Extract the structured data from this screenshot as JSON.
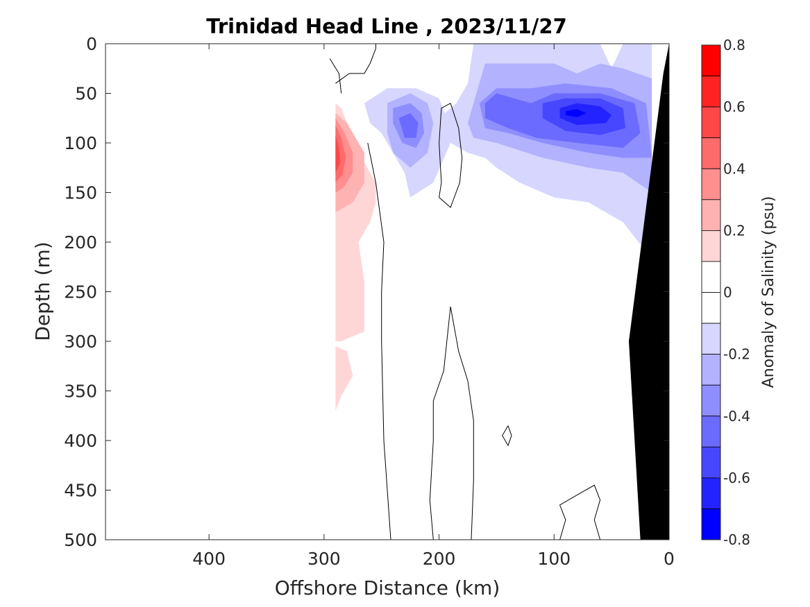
{
  "chart_data": {
    "type": "heatmap",
    "subtype": "filled-contour",
    "title": "Trinidad Head Line , 2023/11/27",
    "xlabel": "Offshore Distance (km)",
    "ylabel": "Depth (m)",
    "colorbar_label": "Anomaly of Salinity (psu)",
    "xlim": [
      490,
      0
    ],
    "ylim": [
      0,
      500
    ],
    "x_reversed": true,
    "y_reversed": true,
    "xticks": [
      400,
      300,
      200,
      100,
      0
    ],
    "yticks": [
      0,
      50,
      100,
      150,
      200,
      250,
      300,
      350,
      400,
      450,
      500
    ],
    "colorbar_ticks": [
      0.8,
      0.6,
      0.4,
      0.2,
      0,
      -0.2,
      -0.4,
      -0.6,
      -0.8
    ],
    "colorbar_range": [
      -0.8,
      0.8
    ],
    "levels": [
      {
        "from": 0.7,
        "to": 0.8,
        "color": "#ff0000"
      },
      {
        "from": 0.6,
        "to": 0.7,
        "color": "#ff2323"
      },
      {
        "from": 0.5,
        "to": 0.6,
        "color": "#ff4747"
      },
      {
        "from": 0.4,
        "to": 0.5,
        "color": "#ff6b6b"
      },
      {
        "from": 0.3,
        "to": 0.4,
        "color": "#ff8e8e"
      },
      {
        "from": 0.2,
        "to": 0.3,
        "color": "#ffb2b2"
      },
      {
        "from": 0.1,
        "to": 0.2,
        "color": "#ffd6d6"
      },
      {
        "from": 0.0,
        "to": 0.1,
        "color": "#ffffff"
      },
      {
        "from": -0.1,
        "to": 0.0,
        "color": "#ffffff"
      },
      {
        "from": -0.2,
        "to": -0.1,
        "color": "#d6d6ff"
      },
      {
        "from": -0.3,
        "to": -0.2,
        "color": "#b2b2ff"
      },
      {
        "from": -0.4,
        "to": -0.3,
        "color": "#8e8eff"
      },
      {
        "from": -0.5,
        "to": -0.4,
        "color": "#6b6bff"
      },
      {
        "from": -0.6,
        "to": -0.5,
        "color": "#4747ff"
      },
      {
        "from": -0.7,
        "to": -0.6,
        "color": "#2323ff"
      },
      {
        "from": -0.8,
        "to": -0.7,
        "color": "#0000ff"
      }
    ],
    "regions": [
      {
        "name": "positive-anomaly-core",
        "level_color": "#ffd6d6",
        "anomaly": 0.15,
        "points": [
          [
            290,
            60
          ],
          [
            285,
            65
          ],
          [
            270,
            110
          ],
          [
            255,
            140
          ],
          [
            255,
            160
          ],
          [
            260,
            180
          ],
          [
            270,
            200
          ],
          [
            265,
            240
          ],
          [
            265,
            290
          ],
          [
            285,
            300
          ],
          [
            290,
            300
          ],
          [
            290,
            60
          ]
        ]
      },
      {
        "name": "positive-anomaly-lower",
        "level_color": "#ffd6d6",
        "anomaly": 0.15,
        "points": [
          [
            290,
            305
          ],
          [
            280,
            310
          ],
          [
            275,
            335
          ],
          [
            285,
            355
          ],
          [
            290,
            370
          ],
          [
            290,
            305
          ]
        ]
      },
      {
        "name": "positive-anomaly-02",
        "level_color": "#ffb2b2",
        "anomaly": 0.25,
        "points": [
          [
            290,
            70
          ],
          [
            280,
            80
          ],
          [
            265,
            110
          ],
          [
            265,
            140
          ],
          [
            275,
            160
          ],
          [
            290,
            170
          ],
          [
            290,
            70
          ]
        ]
      },
      {
        "name": "positive-anomaly-03",
        "level_color": "#ff8e8e",
        "anomaly": 0.35,
        "points": [
          [
            290,
            75
          ],
          [
            282,
            90
          ],
          [
            275,
            110
          ],
          [
            275,
            130
          ],
          [
            283,
            145
          ],
          [
            290,
            150
          ],
          [
            290,
            75
          ]
        ]
      },
      {
        "name": "positive-anomaly-04",
        "level_color": "#ff6b6b",
        "anomaly": 0.45,
        "points": [
          [
            290,
            82
          ],
          [
            285,
            95
          ],
          [
            281,
            115
          ],
          [
            284,
            132
          ],
          [
            290,
            140
          ],
          [
            290,
            82
          ]
        ]
      },
      {
        "name": "positive-anomaly-05",
        "level_color": "#ff4747",
        "anomaly": 0.55,
        "points": [
          [
            290,
            92
          ],
          [
            287,
            105
          ],
          [
            286,
            120
          ],
          [
            290,
            130
          ],
          [
            290,
            92
          ]
        ]
      },
      {
        "name": "negative-anomaly-01",
        "level_color": "#d6d6ff",
        "anomaly": -0.15,
        "points": [
          [
            265,
            60
          ],
          [
            245,
            45
          ],
          [
            220,
            45
          ],
          [
            200,
            55
          ],
          [
            195,
            70
          ],
          [
            185,
            60
          ],
          [
            175,
            40
          ],
          [
            170,
            0
          ],
          [
            60,
            0
          ],
          [
            50,
            25
          ],
          [
            40,
            0
          ],
          [
            15,
            0
          ],
          [
            15,
            200
          ],
          [
            10,
            225
          ],
          [
            20,
            210
          ],
          [
            40,
            180
          ],
          [
            70,
            160
          ],
          [
            100,
            155
          ],
          [
            130,
            140
          ],
          [
            150,
            125
          ],
          [
            160,
            115
          ],
          [
            175,
            110
          ],
          [
            190,
            100
          ],
          [
            205,
            140
          ],
          [
            225,
            155
          ],
          [
            230,
            130
          ],
          [
            240,
            110
          ],
          [
            250,
            90
          ],
          [
            260,
            80
          ],
          [
            265,
            60
          ]
        ]
      },
      {
        "name": "negative-anomaly-02",
        "level_color": "#b2b2ff",
        "anomaly": -0.25,
        "points": [
          [
            245,
            60
          ],
          [
            225,
            50
          ],
          [
            210,
            60
          ],
          [
            205,
            80
          ],
          [
            210,
            110
          ],
          [
            225,
            125
          ],
          [
            240,
            110
          ],
          [
            245,
            90
          ],
          [
            245,
            60
          ]
        ]
      },
      {
        "name": "negative-anomaly-02b",
        "level_color": "#b2b2ff",
        "anomaly": -0.25,
        "points": [
          [
            175,
            80
          ],
          [
            165,
            40
          ],
          [
            160,
            20
          ],
          [
            100,
            20
          ],
          [
            80,
            30
          ],
          [
            60,
            20
          ],
          [
            40,
            25
          ],
          [
            15,
            35
          ],
          [
            15,
            150
          ],
          [
            40,
            130
          ],
          [
            70,
            125
          ],
          [
            110,
            115
          ],
          [
            150,
            100
          ],
          [
            170,
            95
          ],
          [
            175,
            80
          ]
        ]
      },
      {
        "name": "negative-anomaly-03",
        "level_color": "#8e8eff",
        "anomaly": -0.35,
        "points": [
          [
            240,
            65
          ],
          [
            225,
            60
          ],
          [
            215,
            70
          ],
          [
            213,
            90
          ],
          [
            220,
            105
          ],
          [
            232,
            100
          ],
          [
            240,
            80
          ],
          [
            240,
            65
          ]
        ]
      },
      {
        "name": "negative-anomaly-03b",
        "level_color": "#8e8eff",
        "anomaly": -0.35,
        "points": [
          [
            165,
            60
          ],
          [
            150,
            45
          ],
          [
            120,
            45
          ],
          [
            90,
            40
          ],
          [
            50,
            45
          ],
          [
            20,
            60
          ],
          [
            15,
            115
          ],
          [
            40,
            115
          ],
          [
            70,
            110
          ],
          [
            110,
            100
          ],
          [
            140,
            90
          ],
          [
            160,
            85
          ],
          [
            165,
            60
          ]
        ]
      },
      {
        "name": "negative-anomaly-04",
        "level_color": "#6b6bff",
        "anomaly": -0.45,
        "points": [
          [
            235,
            75
          ],
          [
            225,
            70
          ],
          [
            218,
            80
          ],
          [
            220,
            95
          ],
          [
            230,
            95
          ],
          [
            235,
            75
          ]
        ]
      },
      {
        "name": "negative-anomaly-04b",
        "level_color": "#6b6bff",
        "anomaly": -0.45,
        "points": [
          [
            160,
            60
          ],
          [
            150,
            50
          ],
          [
            135,
            55
          ],
          [
            120,
            60
          ],
          [
            100,
            50
          ],
          [
            60,
            50
          ],
          [
            30,
            60
          ],
          [
            25,
            90
          ],
          [
            40,
            105
          ],
          [
            80,
            100
          ],
          [
            115,
            95
          ],
          [
            140,
            85
          ],
          [
            160,
            75
          ],
          [
            160,
            60
          ]
        ]
      },
      {
        "name": "negative-anomaly-05",
        "level_color": "#4747ff",
        "anomaly": -0.55,
        "points": [
          [
            110,
            60
          ],
          [
            90,
            55
          ],
          [
            60,
            55
          ],
          [
            40,
            65
          ],
          [
            38,
            85
          ],
          [
            60,
            92
          ],
          [
            90,
            88
          ],
          [
            110,
            75
          ],
          [
            110,
            60
          ]
        ]
      },
      {
        "name": "negative-anomaly-06",
        "level_color": "#2323ff",
        "anomaly": -0.65,
        "points": [
          [
            95,
            65
          ],
          [
            80,
            60
          ],
          [
            60,
            63
          ],
          [
            50,
            72
          ],
          [
            55,
            80
          ],
          [
            80,
            82
          ],
          [
            95,
            75
          ],
          [
            95,
            65
          ]
        ]
      },
      {
        "name": "negative-anomaly-07",
        "level_color": "#0000ff",
        "anomaly": -0.75,
        "points": [
          [
            90,
            68
          ],
          [
            80,
            66
          ],
          [
            72,
            70
          ],
          [
            80,
            74
          ],
          [
            90,
            72
          ],
          [
            90,
            68
          ]
        ]
      }
    ],
    "zero_contours": [
      [
        [
          262,
          100
        ],
        [
          255,
          140
        ],
        [
          248,
          200
        ],
        [
          250,
          250
        ],
        [
          250,
          300
        ],
        [
          248,
          400
        ],
        [
          245,
          450
        ],
        [
          242,
          500
        ]
      ],
      [
        [
          290,
          40
        ],
        [
          278,
          30
        ],
        [
          265,
          30
        ],
        [
          260,
          20
        ],
        [
          255,
          5
        ],
        [
          255,
          0
        ]
      ],
      [
        [
          295,
          15
        ],
        [
          287,
          30
        ],
        [
          285,
          50
        ]
      ],
      [
        [
          190,
          60
        ],
        [
          183,
          85
        ],
        [
          180,
          115
        ],
        [
          182,
          140
        ],
        [
          190,
          165
        ],
        [
          200,
          155
        ],
        [
          198,
          140
        ],
        [
          200,
          100
        ],
        [
          198,
          65
        ],
        [
          190,
          60
        ]
      ],
      [
        [
          190,
          265
        ],
        [
          183,
          310
        ],
        [
          175,
          340
        ],
        [
          170,
          380
        ],
        [
          170,
          440
        ],
        [
          172,
          500
        ]
      ],
      [
        [
          190,
          265
        ],
        [
          196,
          330
        ],
        [
          205,
          360
        ],
        [
          205,
          400
        ],
        [
          208,
          460
        ],
        [
          205,
          500
        ]
      ],
      [
        [
          140,
          385
        ],
        [
          137,
          395
        ],
        [
          140,
          405
        ],
        [
          145,
          395
        ],
        [
          140,
          385
        ]
      ],
      [
        [
          95,
          500
        ],
        [
          90,
          480
        ],
        [
          95,
          465
        ],
        [
          80,
          455
        ],
        [
          65,
          445
        ],
        [
          60,
          460
        ],
        [
          65,
          480
        ],
        [
          60,
          500
        ]
      ]
    ],
    "bathymetry": {
      "color": "#000000",
      "points": [
        [
          0,
          0
        ],
        [
          0,
          500
        ],
        [
          25,
          500
        ],
        [
          30,
          400
        ],
        [
          35,
          300
        ],
        [
          5,
          30
        ],
        [
          0,
          0
        ]
      ]
    }
  }
}
